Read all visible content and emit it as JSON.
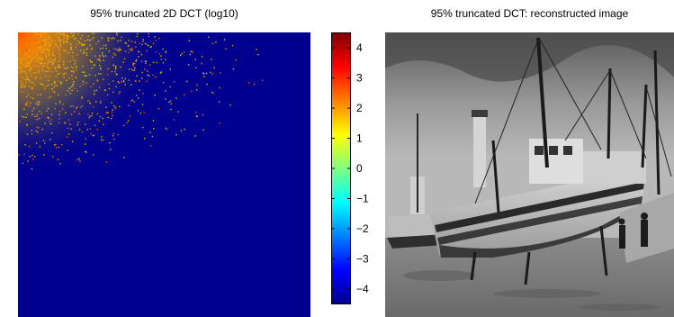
{
  "figure": {
    "left_title": "95% truncated 2D DCT (log10)",
    "right_title": "95% truncated DCT: reconstructed image"
  },
  "colorbar": {
    "ticks": [
      "4",
      "3",
      "2",
      "1",
      "0",
      "−1",
      "−2",
      "−3",
      "−4"
    ],
    "tick_values": [
      4,
      3,
      2,
      1,
      0,
      -1,
      -2,
      -3,
      -4
    ],
    "range": [
      -4.5,
      4.5
    ],
    "colormap": "jet"
  },
  "colors": {
    "background_low": "#00008f",
    "mid": "#80ff80",
    "high": "#ff0000",
    "max": "#800000"
  }
}
